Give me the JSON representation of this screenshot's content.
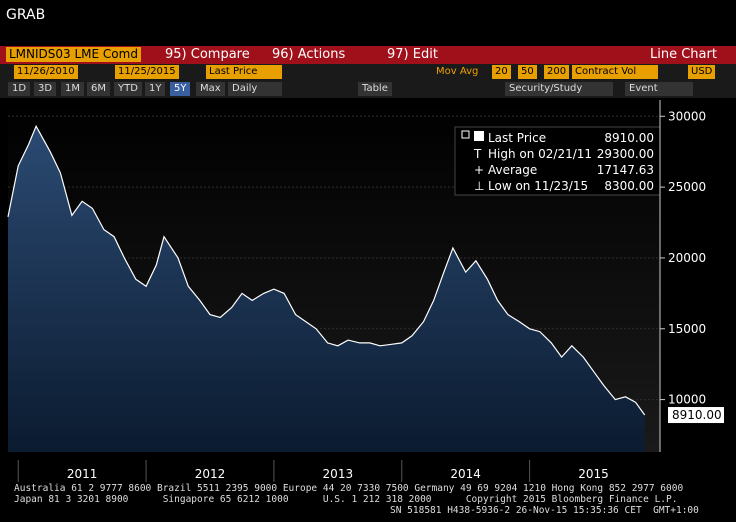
{
  "header": {
    "title": "GRAB"
  },
  "toolbar": {
    "security": "LMNIDS03 LME Comd",
    "menus": [
      "95) Compare",
      "96) Actions",
      "97) Edit"
    ],
    "chart_type": "Line Chart"
  },
  "settings": {
    "start_date": "11/26/2010",
    "end_date": "11/25/2015",
    "field": "Last Price",
    "mov_avg": "Mov Avg",
    "mov_avg_periods": [
      "20",
      "50",
      "200"
    ],
    "volume": "Contract Vol",
    "currency": "USD"
  },
  "periods": [
    "1D",
    "3D",
    "1M",
    "6M",
    "YTD",
    "1Y",
    "5Y",
    "Max"
  ],
  "frequency": "Daily",
  "table_button": "Table",
  "security_study": "Security/Study",
  "event": "Event",
  "chart_data": {
    "type": "line",
    "x": [
      2010.92,
      2011.0,
      2011.08,
      2011.14,
      2011.25,
      2011.33,
      2011.42,
      2011.5,
      2011.58,
      2011.67,
      2011.75,
      2011.83,
      2011.92,
      2012.0,
      2012.08,
      2012.14,
      2012.25,
      2012.33,
      2012.42,
      2012.5,
      2012.58,
      2012.67,
      2012.75,
      2012.83,
      2012.92,
      2013.0,
      2013.08,
      2013.17,
      2013.25,
      2013.33,
      2013.42,
      2013.5,
      2013.58,
      2013.67,
      2013.75,
      2013.83,
      2013.92,
      2014.0,
      2014.08,
      2014.17,
      2014.25,
      2014.33,
      2014.4,
      2014.5,
      2014.58,
      2014.67,
      2014.75,
      2014.83,
      2014.92,
      2015.0,
      2015.08,
      2015.17,
      2015.25,
      2015.33,
      2015.42,
      2015.5,
      2015.58,
      2015.67,
      2015.75,
      2015.83,
      2015.9
    ],
    "series": [
      {
        "name": "Last Price",
        "color": "#ffffff",
        "values": [
          22900,
          26500,
          28000,
          29300,
          27500,
          26000,
          23000,
          24000,
          23500,
          22000,
          21500,
          20000,
          18500,
          18000,
          19500,
          21500,
          20000,
          18000,
          17000,
          16000,
          15800,
          16500,
          17500,
          17000,
          17500,
          17800,
          17500,
          16000,
          15500,
          15000,
          14000,
          13800,
          14200,
          14000,
          14000,
          13800,
          13900,
          14000,
          14500,
          15500,
          17000,
          19000,
          20700,
          19000,
          19800,
          18500,
          17000,
          16000,
          15500,
          15000,
          14800,
          14000,
          13000,
          13800,
          13000,
          12000,
          11000,
          10000,
          10200,
          9800,
          8910
        ]
      }
    ],
    "xlim": [
      2010.92,
      2016.02
    ],
    "xticks": [
      2011,
      2012,
      2013,
      2014,
      2015
    ],
    "ylim": [
      6300,
      31150
    ],
    "yticks": [
      10000,
      15000,
      20000,
      25000,
      30000
    ],
    "grid": true,
    "legend": [
      {
        "label": "Last Price",
        "value": "8910.00"
      },
      {
        "label": "High on 02/21/11",
        "value": "29300.00"
      },
      {
        "label": "Average",
        "value": "17147.63"
      },
      {
        "label": "Low on 11/23/15",
        "value": "8300.00"
      }
    ],
    "last_price_tag": "8910.00"
  },
  "footer": [
    "Australia 61 2 9777 8600 Brazil 5511 2395 9000 Europe 44 20 7330 7500 Germany 49 69 9204 1210 Hong Kong 852 2977 6000",
    "Japan 81 3 3201 8900      Singapore 65 6212 1000      U.S. 1 212 318 2000      Copyright 2015 Bloomberg Finance L.P.",
    "SN 518581 H438-5936-2 26-Nov-15 15:35:36 CET  GMT+1:00"
  ]
}
